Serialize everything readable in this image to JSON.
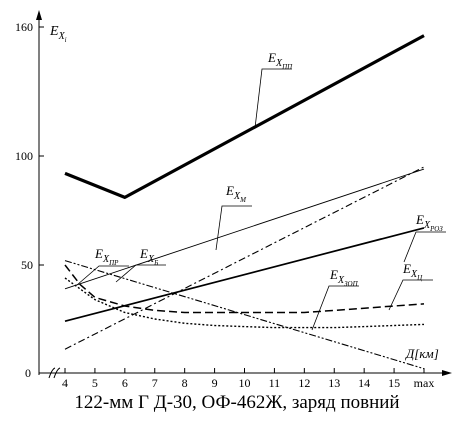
{
  "caption": "122-мм Г Д-30, ОФ-462Ж, заряд повний",
  "chart_data": {
    "type": "line",
    "xlabel": {
      "main": "Д",
      "unit": "[км]"
    },
    "ylabel": {
      "main": "E",
      "sub": "X",
      "subsub": "i"
    },
    "x_ticks": [
      "4",
      "5",
      "6",
      "7",
      "8",
      "9",
      "10",
      "11",
      "12",
      "13",
      "14",
      "15",
      "max"
    ],
    "x_tick_values": [
      4,
      5,
      6,
      7,
      8,
      9,
      10,
      11,
      12,
      13,
      14,
      15,
      16
    ],
    "y_ticks": [
      "50",
      "100",
      "160"
    ],
    "y_tick_values": [
      50,
      100,
      160
    ],
    "origin_label": "0",
    "series": [
      {
        "name": "E_XПП",
        "sub": "ПП",
        "style": "thick",
        "x": [
          4,
          6,
          16
        ],
        "y": [
          92,
          81,
          156
        ]
      },
      {
        "name": "E_XМ",
        "sub": "М",
        "style": "dashdot",
        "x": [
          4,
          16
        ],
        "y": [
          11,
          95
        ]
      },
      {
        "name": "E_XРОЗ",
        "sub": "РОЗ",
        "style": "solid",
        "x": [
          4,
          16
        ],
        "y": [
          24,
          67
        ]
      },
      {
        "name": "E_XБ",
        "sub": "Б",
        "style": "thin",
        "x": [
          4,
          16
        ],
        "y": [
          39,
          94
        ]
      },
      {
        "name": "E_XПР",
        "sub": "ПР",
        "style": "dashdotdot",
        "x": [
          4,
          16
        ],
        "y": [
          52,
          2
        ]
      },
      {
        "name": "E_XЦ",
        "sub": "Ц",
        "style": "dashed",
        "x": [
          4,
          4.5,
          5,
          6,
          7,
          8,
          9,
          10,
          11,
          12,
          13,
          14,
          15,
          16
        ],
        "y": [
          50,
          41,
          35,
          31,
          29,
          28,
          28,
          28,
          28,
          28,
          29,
          30,
          31,
          32
        ]
      },
      {
        "name": "E_XЗОП",
        "sub": "ЗОП",
        "style": "dotted",
        "x": [
          4,
          5,
          6,
          7,
          8,
          9,
          10,
          11,
          12,
          13,
          14,
          15,
          16
        ],
        "y": [
          44,
          34,
          28,
          25,
          23,
          22,
          21.5,
          21,
          21,
          21,
          21.5,
          22,
          22.5
        ]
      }
    ]
  }
}
